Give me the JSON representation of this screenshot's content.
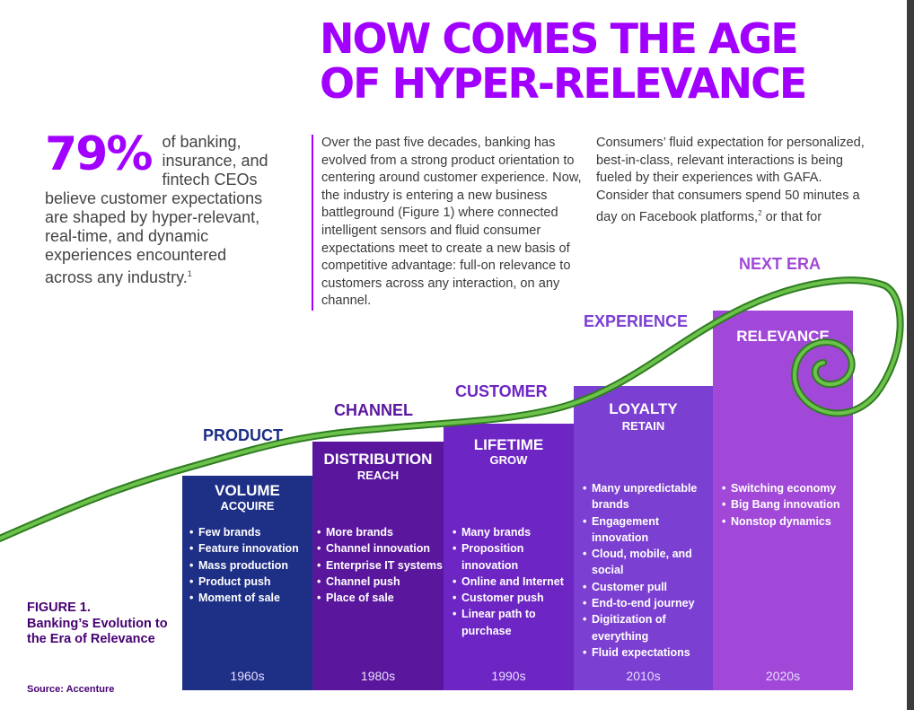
{
  "headline": {
    "line1": "NOW COMES THE AGE",
    "line2": "OF HYPER-RELEVANCE"
  },
  "stat": {
    "value": "79%",
    "text": "of banking, insurance, and fintech CEOs believe customer expectations are shaped by hyper-relevant, real-time, and dynamic experiences encountered across any industry.",
    "footnote": "1"
  },
  "body": {
    "col1": "Over the past five decades, banking has evolved from a strong product orientation to centering around customer experience. Now, the industry is entering a new business battleground (Figure 1) where connected intelligent sensors and fluid consumer expectations meet to create a new basis of competitive advantage: full-on relevance to customers across any interaction, on any channel.",
    "col2_part1": "Consumers’ fluid expectation for personalized, best-in-class, relevant interactions is being fueled by their experiences with GAFA. Consider that consumers spend 50 minutes a day on Facebook platforms,",
    "col2_footnote": "2",
    "col2_part2": " or that for"
  },
  "era_labels": {
    "product": "PRODUCT",
    "channel": "CHANNEL",
    "customer": "CUSTOMER",
    "experience": "EXPERIENCE",
    "next_era": "NEXT ERA"
  },
  "columns": [
    {
      "title": "VOLUME",
      "subtitle": "ACQUIRE",
      "year": "1960s",
      "items": [
        "Few brands",
        "Feature innovation",
        "Mass production",
        "Product push",
        "Moment of sale"
      ]
    },
    {
      "title": "DISTRIBUTION",
      "subtitle": "REACH",
      "year": "1980s",
      "items": [
        "More brands",
        "Channel innovation",
        "Enterprise IT systems",
        "Channel push",
        "Place of sale"
      ]
    },
    {
      "title": "LIFETIME",
      "subtitle": "GROW",
      "year": "1990s",
      "items": [
        "Many brands",
        "Proposition innovation",
        "Online and Internet",
        "Customer push",
        "Linear path to purchase"
      ]
    },
    {
      "title": "LOYALTY",
      "subtitle": "RETAIN",
      "year": "2010s",
      "items": [
        "Many unpredictable brands",
        "Engagement innovation",
        "Cloud, mobile, and social",
        "Customer pull",
        "End-to-end journey",
        "Digitization of everything",
        "Fluid expectations"
      ]
    },
    {
      "title": "RELEVANCE",
      "subtitle": "",
      "year": "2020s",
      "items": [
        "Switching economy",
        "Big Bang innovation",
        "Nonstop dynamics"
      ]
    }
  ],
  "figure": {
    "number": "FIGURE 1.",
    "caption": "Banking’s Evolution to the Era of Relevance",
    "source": "Source: Accenture"
  },
  "colors": {
    "brand_purple": "#a100ff",
    "dark_purple": "#460073",
    "col_1960s": "#1e2f86",
    "col_1980s": "#5a179e",
    "col_1990s": "#6d25c4",
    "col_2010s": "#7b3fd1",
    "col_2020s": "#a148d8",
    "curve_green": "#55b33b"
  }
}
